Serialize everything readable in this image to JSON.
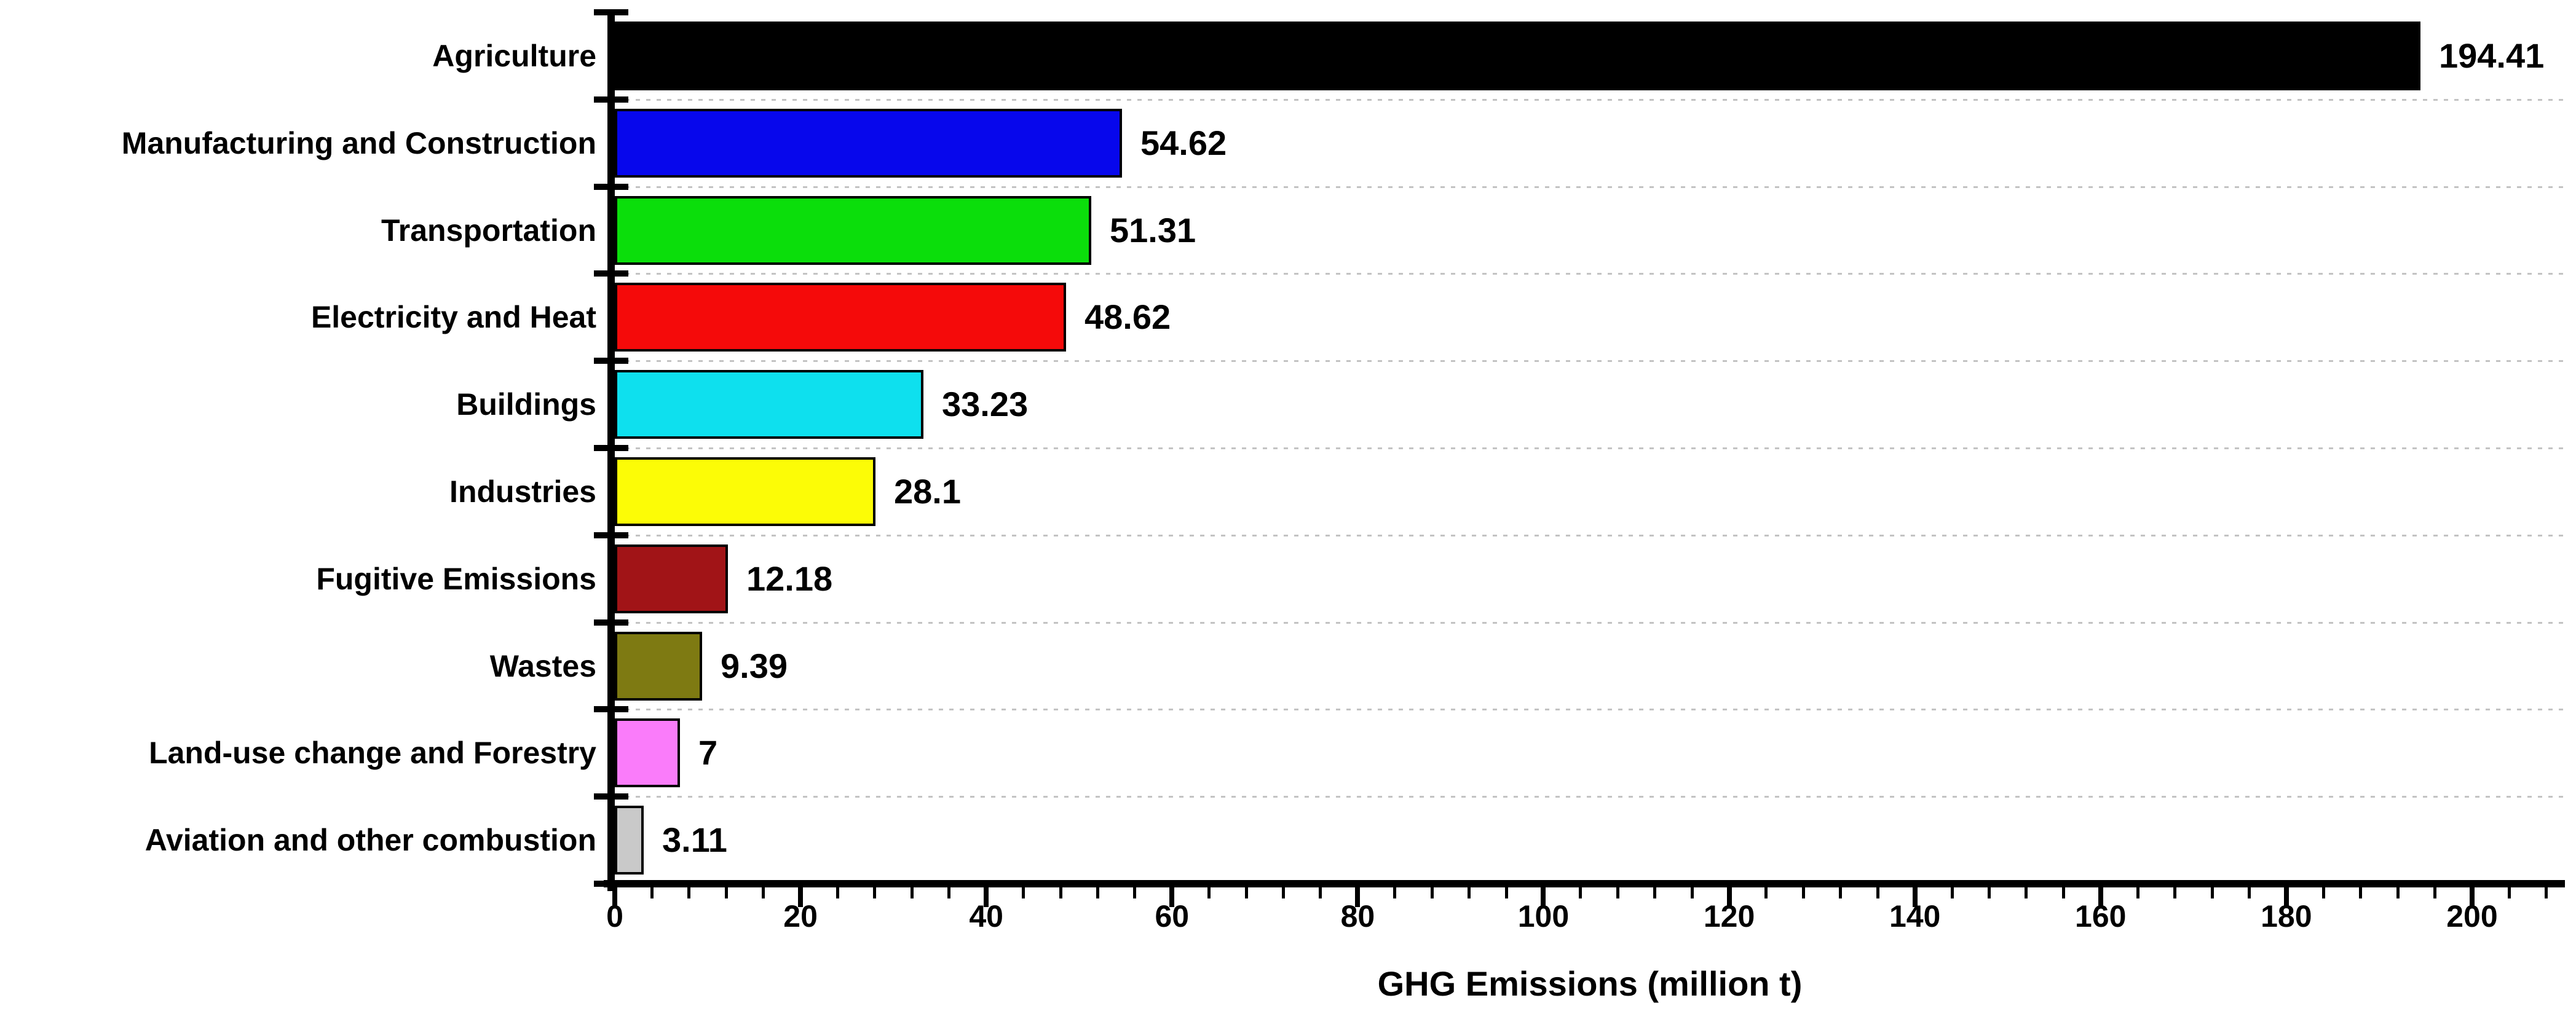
{
  "chart_data": {
    "type": "bar",
    "orientation": "horizontal",
    "title": "",
    "xlabel": "GHG Emissions (million t)",
    "ylabel": "",
    "xlim": [
      0,
      210
    ],
    "x_major_ticks": [
      0,
      20,
      40,
      60,
      80,
      100,
      120,
      140,
      160,
      180,
      200
    ],
    "x_minor_tick_step": 4,
    "grid": "dotted horizontal gridlines at category boundaries",
    "legend_position": "none",
    "categories": [
      "Agriculture",
      "Manufacturing and Construction",
      "Transportation",
      "Electricity and Heat",
      "Buildings",
      "Industries",
      "Fugitive Emissions",
      "Wastes",
      "Land-use change and Forestry",
      "Aviation and other combustion"
    ],
    "values": [
      194.41,
      54.62,
      51.31,
      48.62,
      33.23,
      28.1,
      12.18,
      9.39,
      7,
      3.11
    ],
    "value_labels": [
      "194.41",
      "54.62",
      "51.31",
      "48.62",
      "33.23",
      "28.1",
      "12.18",
      "9.39",
      "7",
      "3.11"
    ],
    "bar_colors": [
      "#000000",
      "#0707EC",
      "#0BDE0B",
      "#F50A0A",
      "#0EE0EE",
      "#FCFC06",
      "#A11417",
      "#7E7A12",
      "#FA7CFA",
      "#C9C9C9"
    ],
    "bar_border_color": "#000000",
    "axis_color": "#000000",
    "gridline_color": "#c3c3c3",
    "background_color": "#ffffff"
  }
}
